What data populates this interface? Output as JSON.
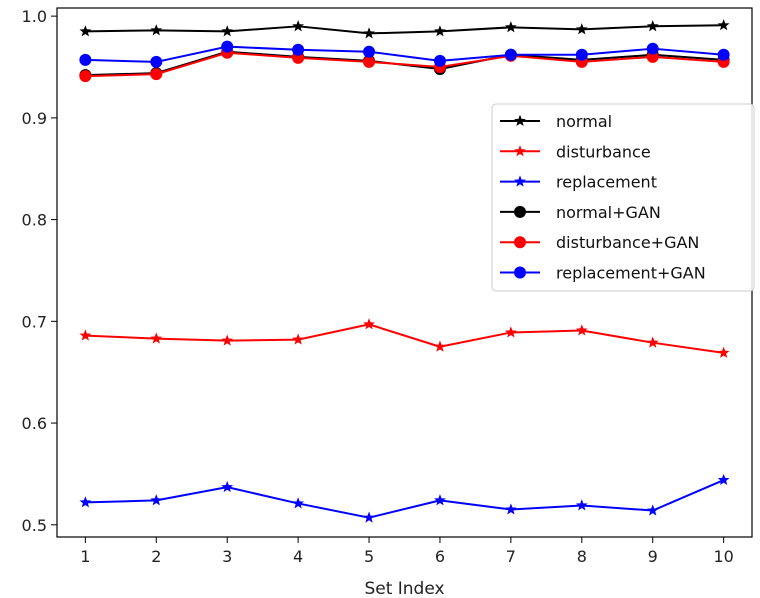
{
  "chart_data": {
    "type": "line",
    "title": "",
    "xlabel": "Set Index",
    "ylabel": "",
    "x": [
      1,
      2,
      3,
      4,
      5,
      6,
      7,
      8,
      9,
      10
    ],
    "x_ticks": [
      "1",
      "2",
      "3",
      "4",
      "5",
      "6",
      "7",
      "8",
      "9",
      "10"
    ],
    "y_ticks": [
      "0.5",
      "0.6",
      "0.7",
      "0.8",
      "0.9",
      "1.0"
    ],
    "xlim": [
      0.6,
      10.4
    ],
    "ylim": [
      0.488,
      1.008
    ],
    "grid": false,
    "legend_position": "right",
    "series": [
      {
        "name": "normal",
        "color": "#000000",
        "marker": "star",
        "values": [
          0.985,
          0.986,
          0.985,
          0.99,
          0.983,
          0.985,
          0.989,
          0.987,
          0.99,
          0.991
        ]
      },
      {
        "name": "disturbance",
        "color": "#ff0000",
        "marker": "star",
        "values": [
          0.686,
          0.683,
          0.681,
          0.682,
          0.697,
          0.675,
          0.689,
          0.691,
          0.679,
          0.669
        ]
      },
      {
        "name": "replacement",
        "color": "#0000ff",
        "marker": "star",
        "values": [
          0.522,
          0.524,
          0.537,
          0.521,
          0.507,
          0.524,
          0.515,
          0.519,
          0.514,
          0.544
        ]
      },
      {
        "name": "normal+GAN",
        "color": "#000000",
        "marker": "circle",
        "values": [
          0.942,
          0.944,
          0.965,
          0.96,
          0.956,
          0.948,
          0.962,
          0.957,
          0.962,
          0.957
        ]
      },
      {
        "name": "disturbance+GAN",
        "color": "#ff0000",
        "marker": "circle",
        "values": [
          0.941,
          0.943,
          0.964,
          0.959,
          0.955,
          0.95,
          0.961,
          0.955,
          0.96,
          0.955
        ]
      },
      {
        "name": "replacement+GAN",
        "color": "#0000ff",
        "marker": "circle",
        "values": [
          0.957,
          0.955,
          0.97,
          0.967,
          0.965,
          0.956,
          0.962,
          0.962,
          0.968,
          0.962
        ]
      }
    ]
  }
}
